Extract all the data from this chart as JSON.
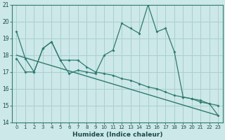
{
  "xlabel": "Humidex (Indice chaleur)",
  "background_color": "#cce8e8",
  "grid_color": "#aacfcf",
  "line_color": "#2e7b6e",
  "x": [
    0,
    1,
    2,
    3,
    4,
    5,
    6,
    7,
    8,
    9,
    10,
    11,
    12,
    13,
    14,
    15,
    16,
    17,
    18,
    19,
    20,
    21,
    22,
    23
  ],
  "line1": [
    19.4,
    17.8,
    17.0,
    18.4,
    18.8,
    17.7,
    16.9,
    17.1,
    17.0,
    16.9,
    18.0,
    18.3,
    19.9,
    19.6,
    19.3,
    21.0,
    19.4,
    19.6,
    18.2,
    15.5,
    15.4,
    15.2,
    15.1,
    14.4
  ],
  "line2": [
    17.8,
    17.0,
    17.0,
    18.4,
    18.8,
    17.7,
    17.7,
    17.7,
    17.3,
    17.0,
    16.9,
    16.8,
    16.6,
    16.5,
    16.3,
    16.1,
    16.0,
    15.8,
    15.6,
    15.5,
    15.4,
    15.3,
    15.1,
    15.0
  ],
  "trend_x": [
    0,
    23
  ],
  "trend_y": [
    18.0,
    14.4
  ],
  "ylim": [
    14,
    21
  ],
  "xlim": [
    -0.5,
    23.5
  ],
  "yticks": [
    14,
    15,
    16,
    17,
    18,
    19,
    20,
    21
  ]
}
